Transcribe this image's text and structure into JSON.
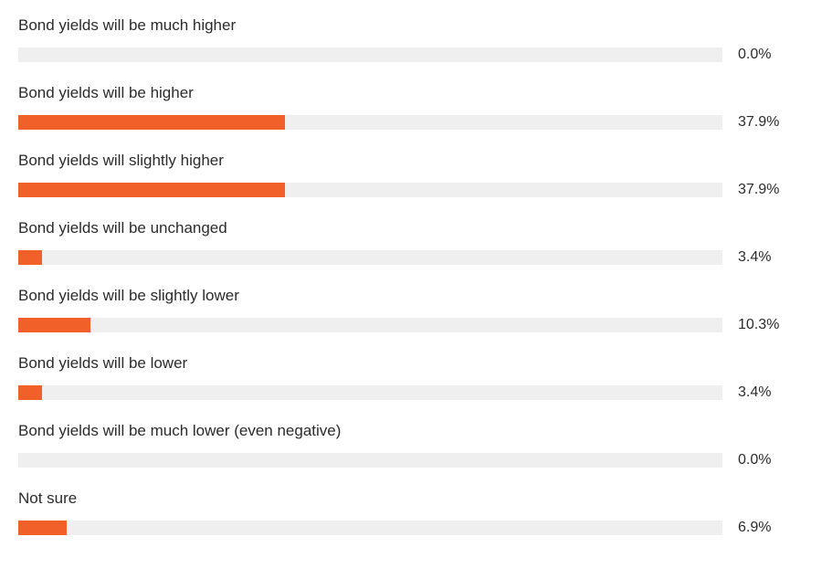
{
  "chart_data": {
    "type": "bar",
    "orientation": "horizontal",
    "categories": [
      "Bond yields will be much higher",
      "Bond yields will be higher",
      "Bond yields will slightly higher",
      "Bond yields will be unchanged",
      "Bond yields will be slightly lower",
      "Bond yields will be lower",
      "Bond yields will be much lower (even negative)",
      "Not sure"
    ],
    "values": [
      0.0,
      37.9,
      37.9,
      3.4,
      10.3,
      3.4,
      0.0,
      6.9
    ],
    "value_labels": [
      "0.0%",
      "37.9%",
      "37.9%",
      "3.4%",
      "10.3%",
      "3.4%",
      "0.0%",
      "6.9%"
    ],
    "xlim": [
      0,
      100
    ],
    "title": "",
    "xlabel": "",
    "ylabel": "",
    "grid": false,
    "colors": {
      "bar": "#f2602a",
      "track": "#efefef",
      "text": "#2b2b2b"
    }
  }
}
